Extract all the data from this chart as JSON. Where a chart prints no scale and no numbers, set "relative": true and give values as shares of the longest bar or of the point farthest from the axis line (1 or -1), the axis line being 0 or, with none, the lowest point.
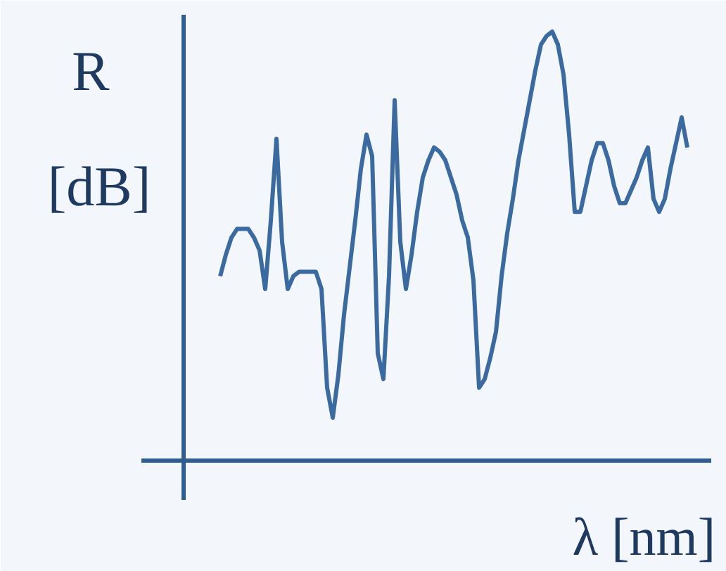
{
  "chart_data": {
    "type": "line",
    "relative": true,
    "xlabel": "λ [nm]",
    "ylabel": "R [dB]",
    "categories": [
      null,
      null,
      null,
      null,
      null,
      null,
      null,
      null,
      null,
      null,
      null,
      null,
      null,
      null,
      null,
      null,
      null,
      null,
      null,
      null,
      null,
      null,
      null,
      null,
      null,
      null,
      null,
      null,
      null,
      null,
      null,
      null,
      null,
      null,
      null,
      null,
      null,
      null,
      null,
      null,
      null,
      null,
      null,
      null,
      null,
      null,
      null,
      null,
      null,
      null,
      null,
      null,
      null,
      null,
      null,
      null,
      null,
      null,
      null,
      null,
      null,
      null,
      null,
      null,
      null,
      null,
      null,
      null,
      null,
      null,
      null,
      null,
      null,
      null,
      null,
      null,
      null,
      null,
      null,
      null,
      null,
      null,
      null,
      null
    ],
    "series": [
      {
        "color": "#3a6aa0",
        "values": [
          0.43,
          0.48,
          0.52,
          0.54,
          0.54,
          0.54,
          0.52,
          0.49,
          0.4,
          0.56,
          0.75,
          0.51,
          0.4,
          0.43,
          0.44,
          0.44,
          0.44,
          0.44,
          0.4,
          0.17,
          0.1,
          0.2,
          0.34,
          0.45,
          0.56,
          0.68,
          0.76,
          0.71,
          0.25,
          0.19,
          0.43,
          0.84,
          0.51,
          0.4,
          0.48,
          0.58,
          0.66,
          0.7,
          0.73,
          0.72,
          0.7,
          0.66,
          0.62,
          0.56,
          0.52,
          0.42,
          0.17,
          0.19,
          0.24,
          0.3,
          0.43,
          0.53,
          0.61,
          0.7,
          0.77,
          0.84,
          0.91,
          0.97,
          0.99,
          1.0,
          0.97,
          0.9,
          0.76,
          0.58,
          0.58,
          0.64,
          0.7,
          0.74,
          0.74,
          0.7,
          0.64,
          0.6,
          0.6,
          0.63,
          0.66,
          0.7,
          0.73,
          0.61,
          0.58,
          0.61,
          0.68,
          0.74,
          0.8,
          0.73
        ]
      }
    ]
  }
}
